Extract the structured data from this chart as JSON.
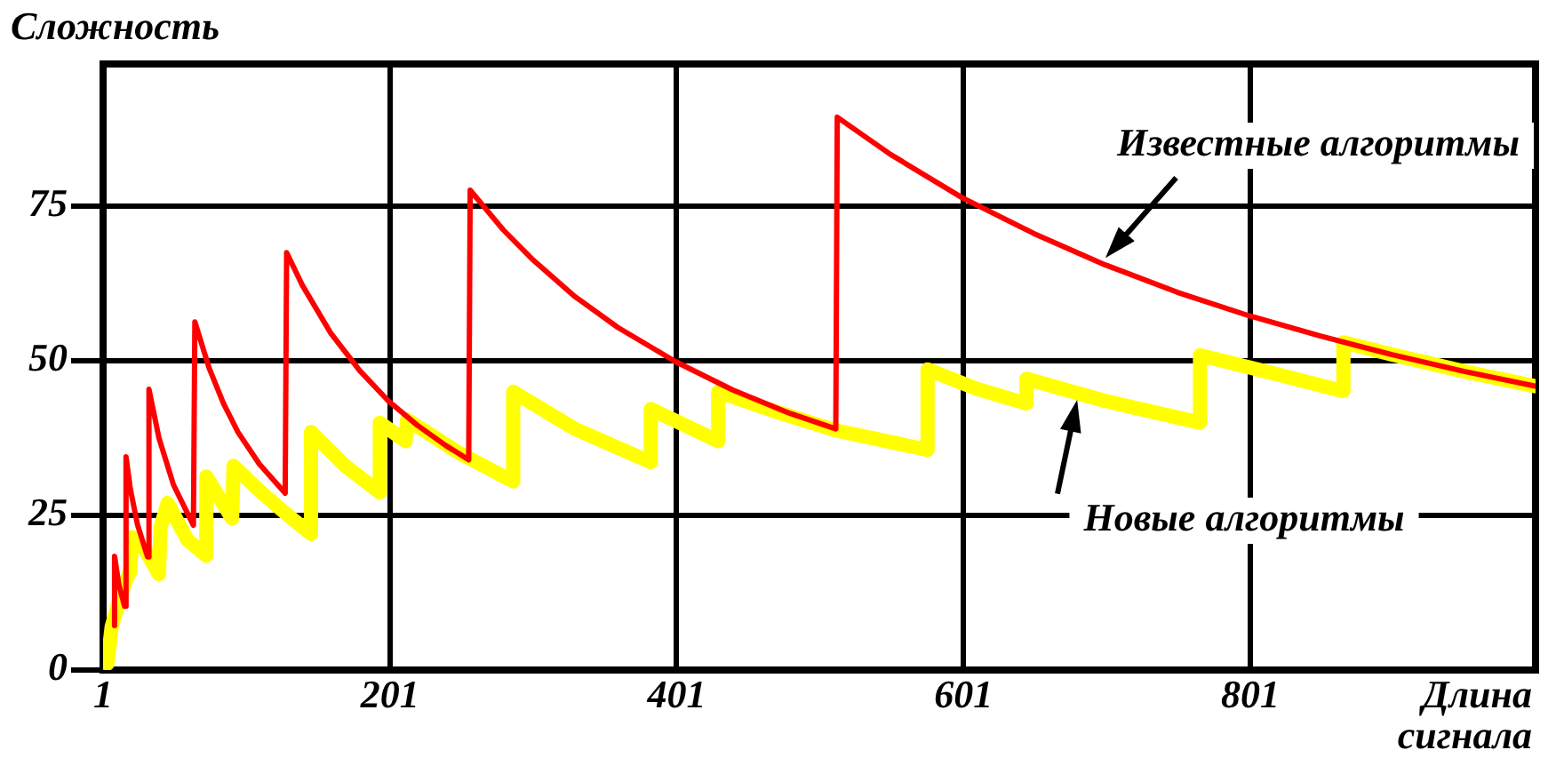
{
  "chart_data": {
    "type": "line",
    "xlabel": "Длина сигнала",
    "ylabel": "Сложность",
    "xlim": [
      1,
      1000
    ],
    "ylim": [
      0,
      98
    ],
    "xticks": [
      1,
      201,
      401,
      601,
      801
    ],
    "yticks": [
      0,
      25,
      50,
      75
    ],
    "grid": true,
    "legend": false,
    "marker": "none",
    "line_style": "solid",
    "series": [
      {
        "name": "Известные алгоритмы",
        "color": "#ff0000",
        "x": [
          9,
          9,
          12,
          16,
          17,
          20,
          25,
          32,
          33,
          40,
          50,
          64,
          65,
          75,
          85,
          95,
          110,
          128,
          129,
          140,
          160,
          180,
          200,
          220,
          240,
          256,
          257,
          280,
          300,
          330,
          360,
          400,
          440,
          480,
          512,
          513,
          550,
          600,
          650,
          700,
          750,
          800,
          850,
          900,
          950,
          1000
        ],
        "values": [
          7.2,
          18.4,
          13.8,
          10.3,
          34.5,
          29.3,
          23.5,
          18.3,
          45.4,
          37.5,
          30.0,
          23.4,
          56.3,
          48.8,
          43.1,
          38.5,
          33.3,
          28.6,
          67.5,
          62.2,
          54.4,
          48.4,
          43.5,
          39.6,
          36.3,
          34.0,
          77.6,
          71.2,
          66.5,
          60.4,
          55.4,
          49.9,
          45.3,
          41.5,
          39.0,
          89.4,
          83.4,
          76.4,
          70.6,
          65.5,
          61.1,
          57.3,
          54.0,
          51.0,
          48.3,
          45.9
        ]
      },
      {
        "name": "Новые алгоритмы",
        "color": "#ffff00",
        "x": [
          4,
          7,
          12,
          17,
          20,
          21,
          30,
          40,
          41,
          46,
          60,
          73,
          73,
          91,
          92,
          110,
          130,
          146,
          146,
          170,
          194,
          194,
          212,
          213,
          250,
          287,
          287,
          330,
          383,
          383,
          430,
          430,
          470,
          511,
          576,
          576,
          610,
          645,
          645,
          700,
          766,
          766,
          820,
          866,
          866,
          900,
          950,
          1000
        ],
        "values": [
          1,
          7,
          11,
          14.5,
          16,
          21.5,
          19.5,
          15.5,
          23,
          27,
          21,
          18.5,
          31.3,
          24.5,
          33,
          29,
          25,
          22,
          38.5,
          33,
          28.7,
          40,
          37,
          40.5,
          35,
          30.5,
          45,
          39,
          33.6,
          42.2,
          37,
          45,
          41.8,
          38.8,
          35.6,
          48.6,
          45.5,
          43.1,
          47.1,
          43.5,
          40,
          50.9,
          47.8,
          45.1,
          53,
          51,
          48.3,
          45.9
        ]
      }
    ]
  }
}
